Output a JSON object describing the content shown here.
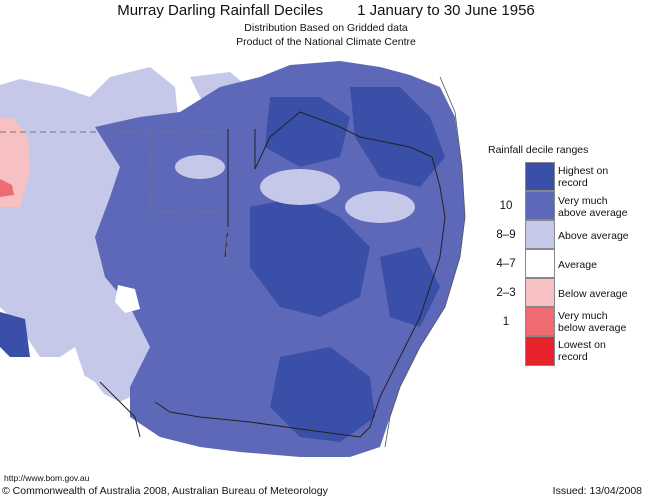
{
  "header": {
    "title": "Murray Darling Rainfall Deciles",
    "period": "1 January to 30 June 1956",
    "subtitle1": "Distribution Based on Gridded data",
    "subtitle2": "Product of the National Climate Centre"
  },
  "legend": {
    "title": "Rainfall decile ranges",
    "items": [
      {
        "label_line1": "Highest on",
        "label_line2": "record",
        "color": "#3a4fa8"
      },
      {
        "label_line1": "Very much",
        "label_line2": "above average",
        "color": "#5d68b8"
      },
      {
        "label_line1": "Above average",
        "label_line2": "",
        "color": "#c5c8e8"
      },
      {
        "label_line1": "Average",
        "label_line2": "",
        "color": "#ffffff"
      },
      {
        "label_line1": "Below average",
        "label_line2": "",
        "color": "#f7c1c4"
      },
      {
        "label_line1": "Very much",
        "label_line2": "below average",
        "color": "#ee6b72"
      },
      {
        "label_line1": "Lowest on",
        "label_line2": "record",
        "color": "#e8222b"
      }
    ],
    "numbers": [
      "10",
      "8–9",
      "4–7",
      "2–3",
      "1"
    ]
  },
  "footer": {
    "url": "http://www.bom.gov.au",
    "copyright": "© Commonwealth of Australia 2008, Australian Bureau of Meteorology",
    "issued": "Issued: 13/04/2008"
  }
}
